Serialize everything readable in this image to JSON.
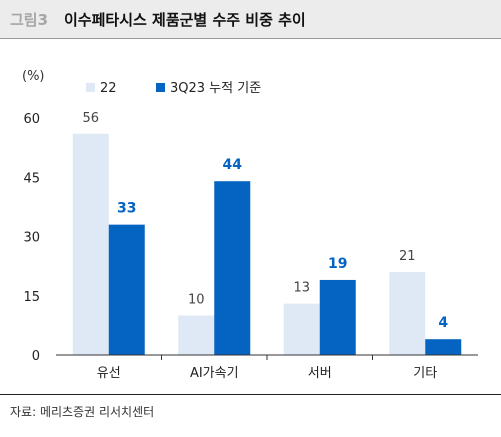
{
  "header": {
    "fig_label": "그림3",
    "title": "이수페타시스 제품군별 수주 비중 추이"
  },
  "footer": {
    "source": "자료: 메리츠증권 리서치센터"
  },
  "colors": {
    "series_light": "#dfe9f5",
    "series_dark": "#0563c1",
    "label_light": "#444444",
    "label_dark": "#0563c1"
  },
  "chart_data": {
    "type": "bar",
    "title": "이수페타시스 제품군별 수주 비중 추이",
    "unit": "(%)",
    "categories": [
      "유선",
      "AI가속기",
      "서버",
      "기타"
    ],
    "series": [
      {
        "name": "22",
        "values": [
          56,
          10,
          13,
          21
        ]
      },
      {
        "name": "3Q23 누적 기준",
        "values": [
          33,
          44,
          19,
          4
        ]
      }
    ],
    "ylim": [
      0,
      60
    ],
    "yticks": [
      0,
      15,
      30,
      45,
      60
    ],
    "legend": "top-left",
    "grid": false
  }
}
